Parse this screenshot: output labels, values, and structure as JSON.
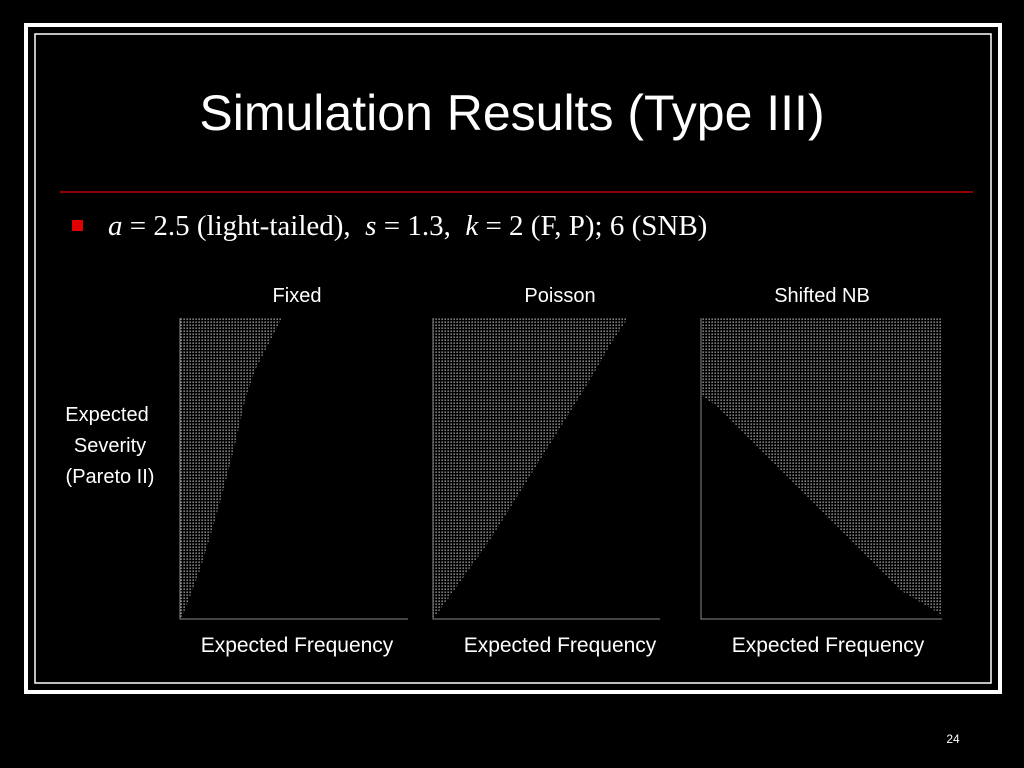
{
  "header": {
    "title": "Simulation Results (Type III)"
  },
  "bullet": {
    "parts": [
      "a",
      " = 2.5 (light-tailed),  ",
      "s",
      " = 1.3,  ",
      "k",
      " = 2 (F, P); 6 (SNB)"
    ]
  },
  "panels": [
    {
      "title": "Fixed",
      "x_label": "Expected Frequency"
    },
    {
      "title": "Poisson",
      "x_label": "Expected Frequency"
    },
    {
      "title": "Shifted NB",
      "x_label": "Expected Frequency"
    }
  ],
  "y_label": [
    "Expected",
    "Severity",
    "(Pareto II)"
  ],
  "footer": {
    "page_number": "24"
  }
}
